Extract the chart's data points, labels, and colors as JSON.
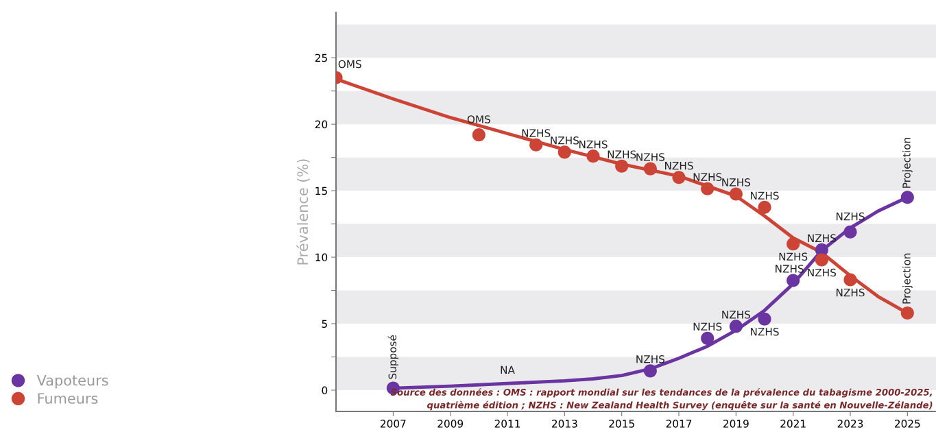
{
  "chart_data": {
    "type": "scatter",
    "ylabel": "Prévalence (%)",
    "xlim": [
      2005,
      2026
    ],
    "xticks": [
      2007,
      2009,
      2011,
      2013,
      2015,
      2017,
      2019,
      2021,
      2023,
      2025
    ],
    "ylim": [
      -1.6,
      28.4
    ],
    "yticks": [
      0,
      {
        "value": 2.5,
        "label": null
      },
      5,
      {
        "value": 7.5,
        "label": null
      },
      10,
      {
        "value": 12.5,
        "label": null
      },
      15,
      {
        "value": 17.5,
        "label": null
      },
      20,
      {
        "value": 22.5,
        "label": null
      },
      25
    ],
    "grid": false,
    "legend": "left",
    "marker": "circle",
    "bands": [
      {
        "axis": "y",
        "from": 0,
        "to": 2.5,
        "color": "#ebebed"
      },
      {
        "axis": "y",
        "from": 5,
        "to": 7.5,
        "color": "#ebebed"
      },
      {
        "axis": "y",
        "from": 10,
        "to": 12.5,
        "color": "#ebebed"
      },
      {
        "axis": "y",
        "from": 15,
        "to": 17.5,
        "color": "#ebebed"
      },
      {
        "axis": "y",
        "from": 20,
        "to": 22.5,
        "color": "#ebebed"
      },
      {
        "axis": "y",
        "from": 25,
        "to": 27.5,
        "color": "#ebebed"
      }
    ],
    "series": [
      {
        "type": "line",
        "marker": "none",
        "color": "#cc4435",
        "x": [
          2005,
          2007,
          2009,
          2011,
          2013,
          2015,
          2017,
          2019,
          2020,
          2021,
          2022,
          2023,
          2024,
          2025
        ],
        "values": [
          23.4,
          21.9,
          20.5,
          19.3,
          18.1,
          17.0,
          16.1,
          14.6,
          13.1,
          11.45,
          10.35,
          8.6,
          7.0,
          5.8
        ]
      },
      {
        "type": "line",
        "marker": "none",
        "color": "#6a35a0",
        "x": [
          2007,
          2009,
          2011,
          2013,
          2014,
          2015,
          2016,
          2017,
          2018,
          2019,
          2020,
          2021,
          2022,
          2023,
          2024,
          2025
        ],
        "values": [
          0.15,
          0.3,
          0.5,
          0.7,
          0.85,
          1.1,
          1.6,
          2.4,
          3.3,
          4.5,
          6.0,
          8.0,
          10.5,
          12.2,
          13.5,
          14.5
        ]
      },
      {
        "name": "Vapoteurs",
        "color": "#6a35a0",
        "x": [
          2007,
          2016,
          2018,
          2019,
          2020,
          2021,
          2022,
          2023,
          2025
        ],
        "values": [
          0.15,
          1.45,
          3.9,
          4.8,
          5.35,
          8.25,
          10.55,
          11.9,
          14.5
        ],
        "value_labels": [
          "Supposé",
          "NZHS",
          "NZHS",
          "NZHS",
          "NZHS",
          "NZHS",
          "NZHS",
          "NZHS",
          "Projection"
        ]
      },
      {
        "name": "Fumeurs",
        "color": "#cc4435",
        "x": [
          2005,
          2010,
          2012,
          2013,
          2014,
          2015,
          2016,
          2017,
          2018,
          2019,
          2020,
          2021,
          2022,
          2023,
          2025
        ],
        "values": [
          23.5,
          19.2,
          18.45,
          17.9,
          17.6,
          16.85,
          16.65,
          16.0,
          15.15,
          14.75,
          13.75,
          11.0,
          9.8,
          8.3,
          5.8
        ],
        "value_labels": [
          "OMS",
          "OMS",
          "NZHS",
          "NZHS",
          "NZHS",
          "NZHS",
          "NZHS",
          "NZHS",
          "NZHS",
          "NZHS",
          "NZHS",
          "NZHS",
          "NZHS",
          "NZHS",
          "Projection"
        ]
      }
    ],
    "annotations": [
      {
        "text": "NA",
        "x": 2011,
        "y": 0.5
      },
      "Source des données : OMS : rapport mondial sur les tendances de la prévalence du tabagisme 2000-2025,\nquatrième édition ; NZHS : New Zealand Health Survey (enquête sur la santé en Nouvelle-Zélande)"
    ]
  }
}
